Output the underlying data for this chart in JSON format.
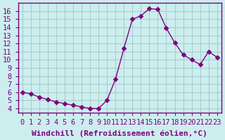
{
  "x": [
    0,
    1,
    2,
    3,
    4,
    5,
    6,
    7,
    8,
    9,
    10,
    11,
    12,
    13,
    14,
    15,
    16,
    17,
    18,
    19,
    20,
    21,
    22,
    23
  ],
  "y": [
    6.0,
    5.8,
    5.4,
    5.1,
    4.8,
    4.6,
    4.4,
    4.2,
    4.0,
    4.0,
    5.0,
    7.6,
    11.4,
    15.0,
    15.4,
    16.3,
    16.2,
    13.9,
    12.1,
    10.6,
    10.0,
    9.4,
    11.0,
    10.3
  ],
  "line_color": "#800080",
  "marker": "D",
  "marker_size": 3,
  "bg_color": "#cceeee",
  "grid_color": "#aacccc",
  "xlabel": "Windchill (Refroidissement éolien,°C)",
  "xlim": [
    -0.5,
    23.5
  ],
  "ylim": [
    3.5,
    17
  ],
  "xticks": [
    0,
    1,
    2,
    3,
    4,
    5,
    6,
    7,
    8,
    9,
    10,
    11,
    12,
    13,
    14,
    15,
    16,
    17,
    18,
    19,
    20,
    21,
    22,
    23
  ],
  "yticks": [
    4,
    5,
    6,
    7,
    8,
    9,
    10,
    11,
    12,
    13,
    14,
    15,
    16
  ],
  "xlabel_color": "#800080",
  "tick_color": "#800080",
  "spine_color": "#800080",
  "font_size_ticks": 7.5,
  "font_size_xlabel": 8
}
